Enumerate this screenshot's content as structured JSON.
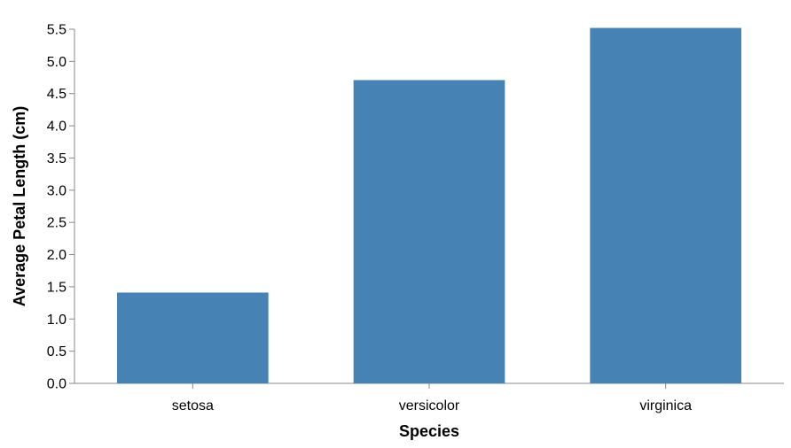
{
  "chart_data": {
    "type": "bar",
    "categories": [
      "setosa",
      "versicolor",
      "virginica"
    ],
    "values": [
      1.41,
      4.71,
      5.52
    ],
    "title": "",
    "xlabel": "Species",
    "ylabel": "Average Petal Length (cm)",
    "ylim": [
      0,
      5.5
    ],
    "yticks": [
      "0.0",
      "0.5",
      "1.0",
      "1.5",
      "2.0",
      "2.5",
      "3.0",
      "3.5",
      "4.0",
      "4.5",
      "5.0",
      "5.5"
    ],
    "grid": false,
    "legend": "none",
    "bar_color": "#4682b4"
  }
}
